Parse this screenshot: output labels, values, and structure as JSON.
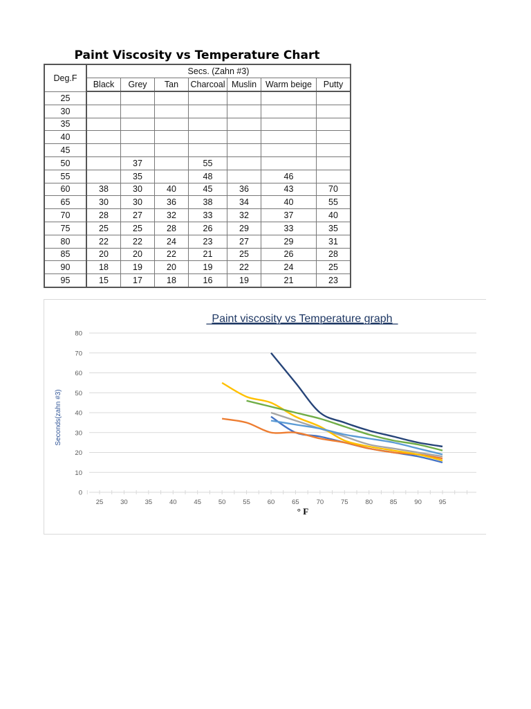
{
  "page_title": "Paint Viscosity vs Temperature Chart",
  "table": {
    "row_header": "Deg.F",
    "group_header": "Secs. (Zahn #3)",
    "columns": [
      "Black",
      "Grey",
      "Tan",
      "Charcoal",
      "Muslin",
      "Warm beige",
      "Putty"
    ],
    "rows": [
      {
        "deg": "25",
        "values": [
          "",
          "",
          "",
          "",
          "",
          "",
          ""
        ]
      },
      {
        "deg": "30",
        "values": [
          "",
          "",
          "",
          "",
          "",
          "",
          ""
        ]
      },
      {
        "deg": "35",
        "values": [
          "",
          "",
          "",
          "",
          "",
          "",
          ""
        ]
      },
      {
        "deg": "40",
        "values": [
          "",
          "",
          "",
          "",
          "",
          "",
          ""
        ]
      },
      {
        "deg": "45",
        "values": [
          "",
          "",
          "",
          "",
          "",
          "",
          ""
        ]
      },
      {
        "deg": "50",
        "values": [
          "",
          "37",
          "",
          "55",
          "",
          "",
          ""
        ]
      },
      {
        "deg": "55",
        "values": [
          "",
          "35",
          "",
          "48",
          "",
          "46",
          ""
        ]
      },
      {
        "deg": "60",
        "values": [
          "38",
          "30",
          "40",
          "45",
          "36",
          "43",
          "70"
        ]
      },
      {
        "deg": "65",
        "values": [
          "30",
          "30",
          "36",
          "38",
          "34",
          "40",
          "55"
        ]
      },
      {
        "deg": "70",
        "values": [
          "28",
          "27",
          "32",
          "33",
          "32",
          "37",
          "40"
        ]
      },
      {
        "deg": "75",
        "values": [
          "25",
          "25",
          "28",
          "26",
          "29",
          "33",
          "35"
        ]
      },
      {
        "deg": "80",
        "values": [
          "22",
          "22",
          "24",
          "23",
          "27",
          "29",
          "31"
        ]
      },
      {
        "deg": "85",
        "values": [
          "20",
          "20",
          "22",
          "21",
          "25",
          "26",
          "28"
        ]
      },
      {
        "deg": "90",
        "values": [
          "18",
          "19",
          "20",
          "19",
          "22",
          "24",
          "25"
        ]
      },
      {
        "deg": "95",
        "values": [
          "15",
          "17",
          "18",
          "16",
          "19",
          "21",
          "23"
        ]
      }
    ]
  },
  "chart_data": {
    "type": "line",
    "title": "Paint viscosity vs Temperature graph",
    "xlabel": "° F",
    "ylabel": "Seconds(zahn #3)",
    "categories": [
      "25",
      "30",
      "35",
      "40",
      "45",
      "50",
      "55",
      "60",
      "65",
      "70",
      "75",
      "80",
      "85",
      "90",
      "95"
    ],
    "ylim": [
      0,
      80
    ],
    "yticks": [
      "0",
      "10",
      "20",
      "30",
      "40",
      "50",
      "60",
      "70",
      "80"
    ],
    "grid": true,
    "legend": "none",
    "smooth": true,
    "series": [
      {
        "name": "Black",
        "color": "#4472C4",
        "values": [
          null,
          null,
          null,
          null,
          null,
          null,
          null,
          38,
          30,
          28,
          25,
          22,
          20,
          18,
          15
        ]
      },
      {
        "name": "Grey",
        "color": "#ED7D31",
        "values": [
          null,
          null,
          null,
          null,
          null,
          37,
          35,
          30,
          30,
          27,
          25,
          22,
          20,
          19,
          17
        ]
      },
      {
        "name": "Tan",
        "color": "#A5A5A5",
        "values": [
          null,
          null,
          null,
          null,
          null,
          null,
          null,
          40,
          36,
          32,
          28,
          24,
          22,
          20,
          18
        ]
      },
      {
        "name": "Charcoal",
        "color": "#FFC000",
        "values": [
          null,
          null,
          null,
          null,
          null,
          55,
          48,
          45,
          38,
          33,
          26,
          23,
          21,
          19,
          16
        ]
      },
      {
        "name": "Muslin",
        "color": "#5B9BD5",
        "values": [
          null,
          null,
          null,
          null,
          null,
          null,
          null,
          36,
          34,
          32,
          29,
          27,
          25,
          22,
          19
        ]
      },
      {
        "name": "Warm beige",
        "color": "#70AD47",
        "values": [
          null,
          null,
          null,
          null,
          null,
          null,
          46,
          43,
          40,
          37,
          33,
          29,
          26,
          24,
          21
        ]
      },
      {
        "name": "Putty",
        "color": "#264478",
        "values": [
          null,
          null,
          null,
          null,
          null,
          null,
          null,
          70,
          55,
          40,
          35,
          31,
          28,
          25,
          23
        ]
      }
    ]
  },
  "colors": {
    "title": "#1F3864",
    "ylabel": "#2F5496",
    "tick": "#595959",
    "grid": "#D9D9D9"
  }
}
